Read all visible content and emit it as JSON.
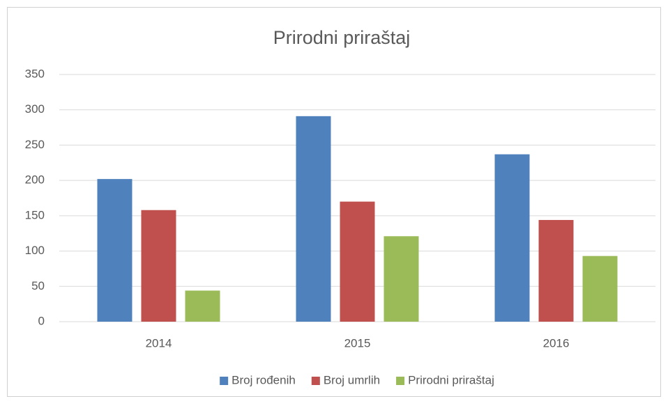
{
  "chart_data": {
    "type": "bar",
    "title": "Prirodni priraštaj",
    "categories": [
      "2014",
      "2015",
      "2016"
    ],
    "series": [
      {
        "name": "Broj rođenih",
        "color": "#4f81bd",
        "values": [
          202,
          291,
          237
        ]
      },
      {
        "name": "Broj umrlih",
        "color": "#c0504d",
        "values": [
          158,
          170,
          144
        ]
      },
      {
        "name": "Prirodni priraštaj",
        "color": "#9bbb59",
        "values": [
          44,
          121,
          93
        ]
      }
    ],
    "ylim": [
      0,
      350
    ],
    "yticks": [
      0,
      50,
      100,
      150,
      200,
      250,
      300,
      350
    ],
    "grid": true,
    "legend": "bottom"
  }
}
